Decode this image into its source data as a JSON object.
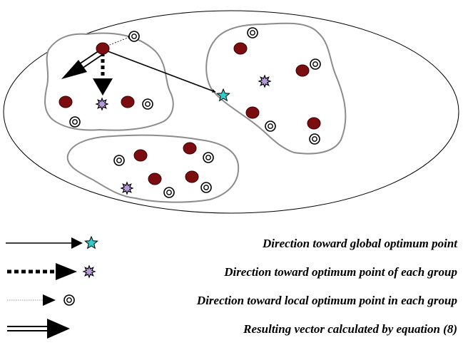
{
  "colors": {
    "background": "#ffffff",
    "outline": "#000000",
    "group_border": "#8c8c8c",
    "group_fill": "#ffffff",
    "particle": "#7b0c10",
    "particle_stroke": "#3a0000",
    "group_optimum": "#b79ad9",
    "global_optimum": "#33cccc",
    "local_optimum_ring": "#000000",
    "arrow": "#000000"
  },
  "icons": {
    "particle": "dark-red-filled-circle",
    "local_optimum": "double-ring-circle",
    "group_optimum": "purple-eight-point-star",
    "global_optimum": "cyan-five-point-star"
  },
  "legend": {
    "items": [
      {
        "id": "global",
        "label": "Direction toward global optimum point",
        "line_style": "solid-thin",
        "marker": "global-optimum-star-icon"
      },
      {
        "id": "group",
        "label": "Direction toward optimum point of each group",
        "line_style": "dotted-thick",
        "marker": "group-optimum-star-icon"
      },
      {
        "id": "local",
        "label": "Direction toward local optimum point in each group",
        "line_style": "dotted-hairline",
        "marker": "local-optimum-ring-icon"
      },
      {
        "id": "resultant",
        "label": "Resulting vector calculated by equation (8)",
        "line_style": "double",
        "marker": "none"
      }
    ]
  }
}
